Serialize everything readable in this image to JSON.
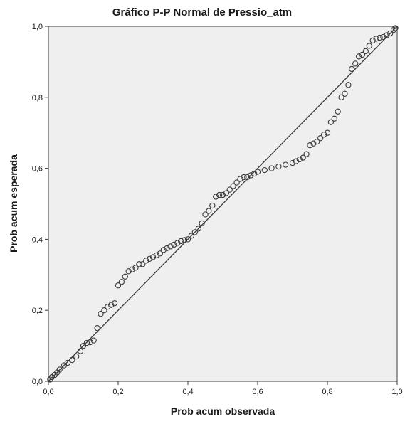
{
  "chart_data": {
    "type": "scatter",
    "title": "Gráfico P-P Normal de Pressio_atm",
    "xlabel": "Prob acum observada",
    "ylabel": "Prob acum esperada",
    "xlim": [
      0,
      1
    ],
    "ylim": [
      0,
      1
    ],
    "x_ticks": [
      "0,0",
      "0,2",
      "0,4",
      "0,6",
      "0,8",
      "1,0"
    ],
    "y_ticks": [
      "0,0",
      "0,2",
      "0,4",
      "0,6",
      "0,8",
      "1,0"
    ],
    "grid": false,
    "reference_line": {
      "from": [
        0,
        0
      ],
      "to": [
        1,
        1
      ]
    },
    "colors": {
      "plot_background": "#efefef",
      "marker_stroke": "#3a3a3a",
      "line": "#3a3a3a"
    },
    "points": [
      [
        0.005,
        0.005
      ],
      [
        0.01,
        0.012
      ],
      [
        0.018,
        0.018
      ],
      [
        0.025,
        0.025
      ],
      [
        0.032,
        0.033
      ],
      [
        0.045,
        0.045
      ],
      [
        0.055,
        0.052
      ],
      [
        0.068,
        0.06
      ],
      [
        0.08,
        0.07
      ],
      [
        0.092,
        0.085
      ],
      [
        0.1,
        0.1
      ],
      [
        0.11,
        0.108
      ],
      [
        0.12,
        0.11
      ],
      [
        0.13,
        0.115
      ],
      [
        0.14,
        0.15
      ],
      [
        0.15,
        0.19
      ],
      [
        0.16,
        0.2
      ],
      [
        0.17,
        0.21
      ],
      [
        0.18,
        0.215
      ],
      [
        0.19,
        0.22
      ],
      [
        0.2,
        0.27
      ],
      [
        0.21,
        0.28
      ],
      [
        0.22,
        0.295
      ],
      [
        0.23,
        0.31
      ],
      [
        0.24,
        0.315
      ],
      [
        0.25,
        0.32
      ],
      [
        0.26,
        0.33
      ],
      [
        0.27,
        0.33
      ],
      [
        0.28,
        0.34
      ],
      [
        0.29,
        0.345
      ],
      [
        0.3,
        0.35
      ],
      [
        0.31,
        0.355
      ],
      [
        0.32,
        0.36
      ],
      [
        0.33,
        0.37
      ],
      [
        0.34,
        0.375
      ],
      [
        0.35,
        0.38
      ],
      [
        0.36,
        0.385
      ],
      [
        0.37,
        0.39
      ],
      [
        0.38,
        0.395
      ],
      [
        0.39,
        0.398
      ],
      [
        0.4,
        0.4
      ],
      [
        0.41,
        0.41
      ],
      [
        0.42,
        0.42
      ],
      [
        0.43,
        0.43
      ],
      [
        0.44,
        0.445
      ],
      [
        0.45,
        0.47
      ],
      [
        0.46,
        0.48
      ],
      [
        0.47,
        0.495
      ],
      [
        0.48,
        0.52
      ],
      [
        0.49,
        0.525
      ],
      [
        0.5,
        0.525
      ],
      [
        0.51,
        0.53
      ],
      [
        0.52,
        0.54
      ],
      [
        0.53,
        0.55
      ],
      [
        0.54,
        0.56
      ],
      [
        0.55,
        0.57
      ],
      [
        0.56,
        0.575
      ],
      [
        0.57,
        0.575
      ],
      [
        0.58,
        0.58
      ],
      [
        0.59,
        0.585
      ],
      [
        0.6,
        0.59
      ],
      [
        0.62,
        0.595
      ],
      [
        0.64,
        0.6
      ],
      [
        0.66,
        0.605
      ],
      [
        0.68,
        0.61
      ],
      [
        0.7,
        0.615
      ],
      [
        0.71,
        0.62
      ],
      [
        0.72,
        0.625
      ],
      [
        0.73,
        0.63
      ],
      [
        0.74,
        0.64
      ],
      [
        0.75,
        0.665
      ],
      [
        0.76,
        0.67
      ],
      [
        0.77,
        0.675
      ],
      [
        0.78,
        0.685
      ],
      [
        0.79,
        0.695
      ],
      [
        0.8,
        0.7
      ],
      [
        0.81,
        0.73
      ],
      [
        0.82,
        0.74
      ],
      [
        0.83,
        0.76
      ],
      [
        0.84,
        0.8
      ],
      [
        0.85,
        0.81
      ],
      [
        0.86,
        0.835
      ],
      [
        0.87,
        0.88
      ],
      [
        0.88,
        0.895
      ],
      [
        0.89,
        0.915
      ],
      [
        0.9,
        0.92
      ],
      [
        0.91,
        0.93
      ],
      [
        0.92,
        0.945
      ],
      [
        0.93,
        0.96
      ],
      [
        0.94,
        0.965
      ],
      [
        0.95,
        0.968
      ],
      [
        0.96,
        0.97
      ],
      [
        0.97,
        0.975
      ],
      [
        0.98,
        0.98
      ],
      [
        0.99,
        0.99
      ],
      [
        0.995,
        0.995
      ]
    ]
  }
}
